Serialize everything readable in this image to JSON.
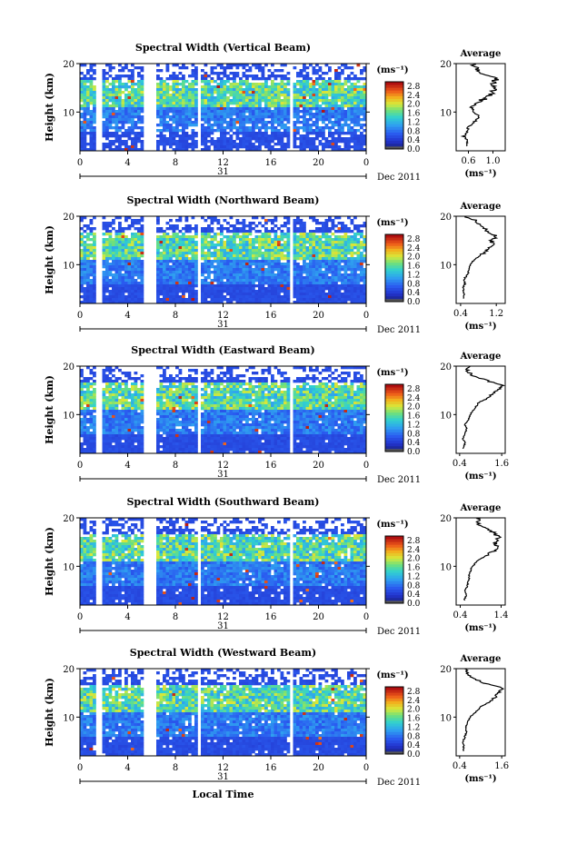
{
  "figure": {
    "xlabel": "Local Time",
    "date_label": "Dec 2011",
    "day_label": "31",
    "units_label": "(ms⁻¹)",
    "avg_title": "Average",
    "avg_xlabel": "(ms⁻¹)"
  },
  "chart_data": [
    {
      "type": "heatmap",
      "title": "Spectral Width (Vertical Beam)",
      "ylabel": "Height (km)",
      "xticks": [
        "0",
        "4",
        "8",
        "12",
        "16",
        "20",
        "0"
      ],
      "yticks": [
        "20",
        "10"
      ],
      "xlim": [
        0,
        24
      ],
      "ylim": [
        2,
        20
      ],
      "colorbar": {
        "ticks": [
          "2.8",
          "2.4",
          "2.0",
          "1.6",
          "1.2",
          "0.8",
          "0.4",
          "0.0"
        ],
        "range": [
          0,
          3.0
        ]
      },
      "gaps_hours": [
        [
          1.1,
          1.6
        ],
        [
          5.3,
          6.2
        ],
        [
          9.7,
          10.0
        ],
        [
          17.5,
          17.8
        ]
      ],
      "average": {
        "xticks": [
          "0.6",
          "1.0"
        ],
        "xlim": [
          0.4,
          1.2
        ],
        "yticks": [
          "20",
          "10"
        ],
        "profile": [
          [
            0.55,
            3
          ],
          [
            0.6,
            4
          ],
          [
            0.52,
            5
          ],
          [
            0.58,
            6
          ],
          [
            0.6,
            7
          ],
          [
            0.7,
            8
          ],
          [
            0.78,
            9
          ],
          [
            0.7,
            10
          ],
          [
            0.65,
            11
          ],
          [
            0.75,
            12
          ],
          [
            0.9,
            13
          ],
          [
            1.0,
            14
          ],
          [
            1.05,
            15
          ],
          [
            1.0,
            16
          ],
          [
            1.08,
            17
          ],
          [
            0.8,
            18
          ],
          [
            0.72,
            19
          ],
          [
            0.7,
            20
          ]
        ]
      }
    },
    {
      "type": "heatmap",
      "title": "Spectral Width (Northward Beam)",
      "ylabel": "Height (km)",
      "xticks": [
        "0",
        "4",
        "8",
        "12",
        "16",
        "20",
        "0"
      ],
      "yticks": [
        "20",
        "10"
      ],
      "xlim": [
        0,
        24
      ],
      "ylim": [
        2,
        20
      ],
      "colorbar": {
        "ticks": [
          "2.8",
          "2.4",
          "2.0",
          "1.6",
          "1.2",
          "0.8",
          "0.4",
          "0.0"
        ],
        "range": [
          0,
          3.0
        ]
      },
      "gaps_hours": [
        [
          1.1,
          1.6
        ],
        [
          5.3,
          6.2
        ],
        [
          9.7,
          10.0
        ],
        [
          17.5,
          17.8
        ]
      ],
      "average": {
        "xticks": [
          "0.4",
          "1.2"
        ],
        "xlim": [
          0.3,
          1.4
        ],
        "yticks": [
          "20",
          "10"
        ],
        "profile": [
          [
            0.45,
            3
          ],
          [
            0.48,
            4
          ],
          [
            0.45,
            5
          ],
          [
            0.5,
            6
          ],
          [
            0.48,
            7
          ],
          [
            0.55,
            8
          ],
          [
            0.6,
            9
          ],
          [
            0.62,
            10
          ],
          [
            0.7,
            11
          ],
          [
            0.85,
            12
          ],
          [
            1.0,
            13
          ],
          [
            1.15,
            14
          ],
          [
            1.1,
            15
          ],
          [
            1.2,
            16
          ],
          [
            1.0,
            17
          ],
          [
            0.9,
            18
          ],
          [
            0.75,
            19
          ],
          [
            0.5,
            20
          ]
        ]
      }
    },
    {
      "type": "heatmap",
      "title": "Spectral Width (Eastward Beam)",
      "ylabel": "Height (km)",
      "xticks": [
        "0",
        "4",
        "8",
        "12",
        "16",
        "20",
        "0"
      ],
      "yticks": [
        "20",
        "10"
      ],
      "xlim": [
        0,
        24
      ],
      "ylim": [
        2,
        20
      ],
      "colorbar": {
        "ticks": [
          "2.8",
          "2.4",
          "2.0",
          "1.6",
          "1.2",
          "0.8",
          "0.4",
          "0.0"
        ],
        "range": [
          0,
          3.0
        ]
      },
      "gaps_hours": [
        [
          1.1,
          1.6
        ],
        [
          5.3,
          6.2
        ],
        [
          9.7,
          10.0
        ],
        [
          17.5,
          17.8
        ]
      ],
      "average": {
        "xticks": [
          "0.4",
          "1.6"
        ],
        "xlim": [
          0.3,
          1.7
        ],
        "yticks": [
          "20",
          "10"
        ],
        "profile": [
          [
            0.5,
            3
          ],
          [
            0.55,
            4
          ],
          [
            0.5,
            5
          ],
          [
            0.55,
            6
          ],
          [
            0.6,
            7
          ],
          [
            0.55,
            8
          ],
          [
            0.65,
            9
          ],
          [
            0.7,
            10
          ],
          [
            0.8,
            11
          ],
          [
            0.9,
            12
          ],
          [
            1.1,
            13
          ],
          [
            1.3,
            14
          ],
          [
            1.5,
            15
          ],
          [
            1.6,
            16
          ],
          [
            1.2,
            17
          ],
          [
            0.8,
            18
          ],
          [
            0.6,
            19
          ],
          [
            0.7,
            20
          ]
        ]
      }
    },
    {
      "type": "heatmap",
      "title": "Spectral Width (Southward Beam)",
      "ylabel": "Height (km)",
      "xticks": [
        "0",
        "4",
        "8",
        "12",
        "16",
        "20",
        "0"
      ],
      "yticks": [
        "20",
        "10"
      ],
      "xlim": [
        0,
        24
      ],
      "ylim": [
        2,
        20
      ],
      "colorbar": {
        "ticks": [
          "2.8",
          "2.4",
          "2.0",
          "1.6",
          "1.2",
          "0.8",
          "0.4",
          "0.0"
        ],
        "range": [
          0,
          3.0
        ]
      },
      "gaps_hours": [
        [
          1.1,
          1.6
        ],
        [
          5.3,
          6.2
        ],
        [
          9.7,
          10.0
        ],
        [
          17.5,
          17.8
        ]
      ],
      "average": {
        "xticks": [
          "0.4",
          "1.4"
        ],
        "xlim": [
          0.3,
          1.5
        ],
        "yticks": [
          "20",
          "10"
        ],
        "profile": [
          [
            0.5,
            3
          ],
          [
            0.55,
            4
          ],
          [
            0.5,
            5
          ],
          [
            0.58,
            6
          ],
          [
            0.6,
            7
          ],
          [
            0.62,
            8
          ],
          [
            0.65,
            9
          ],
          [
            0.7,
            10
          ],
          [
            0.8,
            11
          ],
          [
            1.0,
            12
          ],
          [
            1.2,
            13
          ],
          [
            1.3,
            14
          ],
          [
            1.25,
            15
          ],
          [
            1.35,
            16
          ],
          [
            1.2,
            17
          ],
          [
            1.0,
            18
          ],
          [
            0.8,
            19
          ],
          [
            0.9,
            20
          ]
        ]
      }
    },
    {
      "type": "heatmap",
      "title": "Spectral Width (Westward Beam)",
      "ylabel": "Height (km)",
      "xticks": [
        "0",
        "4",
        "8",
        "12",
        "16",
        "20",
        "0"
      ],
      "yticks": [
        "20",
        "10"
      ],
      "xlim": [
        0,
        24
      ],
      "ylim": [
        2,
        20
      ],
      "colorbar": {
        "ticks": [
          "2.8",
          "2.4",
          "2.0",
          "1.6",
          "1.2",
          "0.8",
          "0.4",
          "0.0"
        ],
        "range": [
          0,
          3.0
        ]
      },
      "gaps_hours": [
        [
          1.1,
          1.6
        ],
        [
          5.3,
          6.2
        ],
        [
          9.7,
          10.0
        ],
        [
          17.5,
          17.8
        ]
      ],
      "average": {
        "xticks": [
          "0.4",
          "1.6"
        ],
        "xlim": [
          0.3,
          1.7
        ],
        "yticks": [
          "20",
          "10"
        ],
        "profile": [
          [
            0.5,
            3
          ],
          [
            0.52,
            4
          ],
          [
            0.5,
            5
          ],
          [
            0.55,
            6
          ],
          [
            0.6,
            7
          ],
          [
            0.58,
            8
          ],
          [
            0.62,
            9
          ],
          [
            0.7,
            10
          ],
          [
            0.85,
            11
          ],
          [
            1.0,
            12
          ],
          [
            1.2,
            13
          ],
          [
            1.4,
            14
          ],
          [
            1.5,
            15
          ],
          [
            1.6,
            16
          ],
          [
            1.1,
            17
          ],
          [
            0.8,
            18
          ],
          [
            0.6,
            19
          ],
          [
            0.55,
            20
          ]
        ]
      }
    }
  ]
}
